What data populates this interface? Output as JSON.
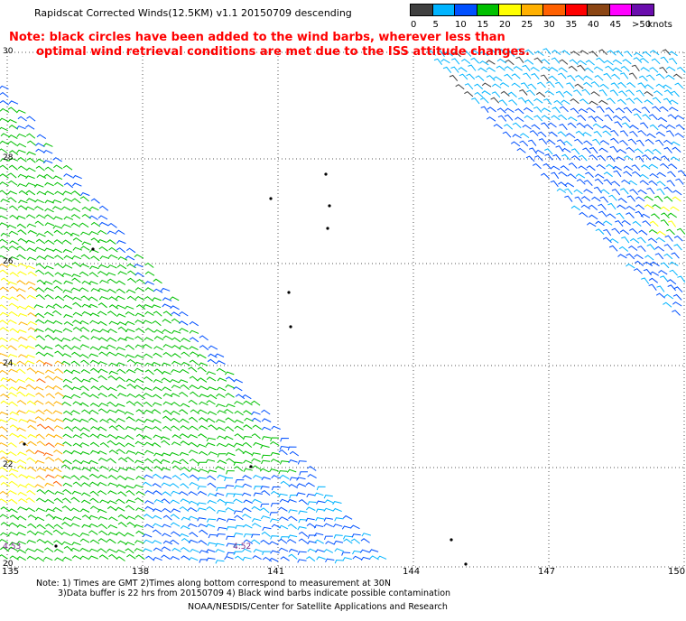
{
  "title": "Rapidscat Corrected Winds(12.5KM) v1.1 20150709 descending",
  "note": {
    "line1": "Note: black circles have been added to the wind barbs, wherever less than",
    "line2": "optimal wind retrieval conditions are met due to the ISS attitude changes."
  },
  "legend": {
    "unit": "knots",
    "bins": [
      {
        "label": "0",
        "color": "#404040"
      },
      {
        "label": "5",
        "color": "#00b4ff"
      },
      {
        "label": "10",
        "color": "#0050ff"
      },
      {
        "label": "15",
        "color": "#00c000"
      },
      {
        "label": "20",
        "color": "#ffff00"
      },
      {
        "label": "25",
        "color": "#ffb000"
      },
      {
        "label": "30",
        "color": "#ff6000"
      },
      {
        "label": "35",
        "color": "#ff0000"
      },
      {
        "label": "40",
        "color": "#8b4513"
      },
      {
        "label": "45",
        "color": "#ff00ff"
      },
      {
        "label": ">50",
        "color": "#6a0dad"
      }
    ]
  },
  "map": {
    "lat_labels": [
      "30",
      "28",
      "26",
      "24",
      "22",
      "20"
    ],
    "lon_labels": [
      "135",
      "138",
      "141",
      "144",
      "147",
      "150"
    ],
    "timestamps": [
      "4:53",
      "4:52"
    ]
  },
  "footer": {
    "line1": "Note: 1) Times are GMT 2)Times along bottom correspond to measurement at 30N",
    "line2": "3)Data buffer is 22 hrs from 20150709 4) Black wind barbs indicate possible contamination",
    "line3": "NOAA/NESDIS/Center for Satellite Applications and Research"
  }
}
